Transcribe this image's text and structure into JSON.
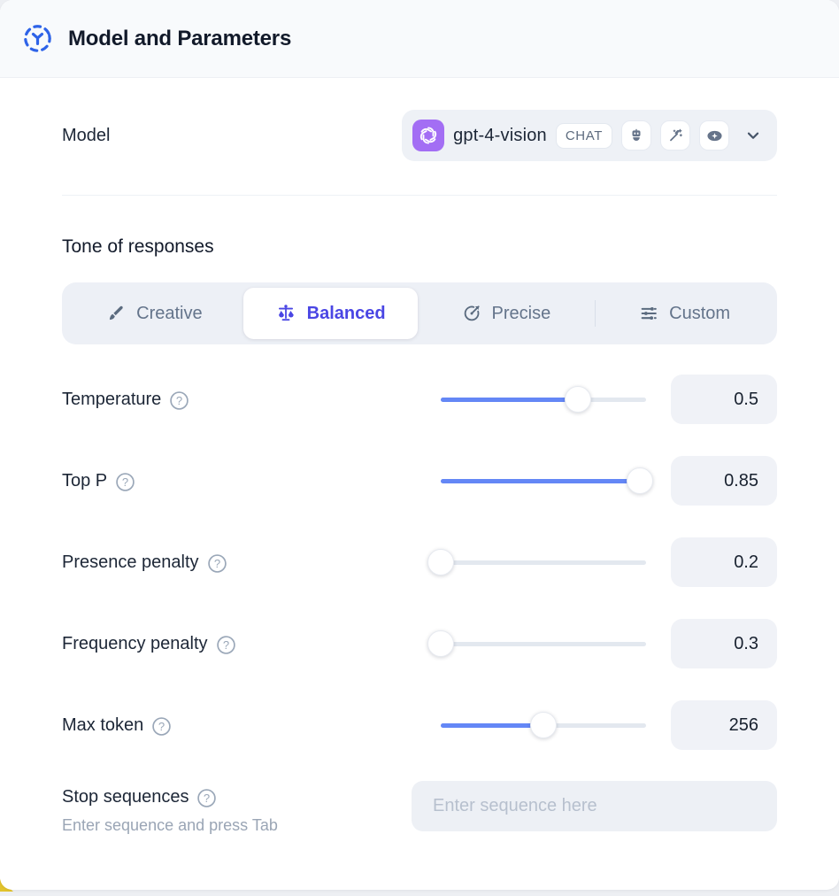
{
  "header": {
    "title": "Model and Parameters"
  },
  "model_row": {
    "label": "Model",
    "selected_model": "gpt-4-vision",
    "badge": "CHAT",
    "capability_icons": [
      "robot-icon",
      "magic-wand-icon",
      "vision-eye-icon"
    ]
  },
  "tone": {
    "heading": "Tone of responses",
    "options": [
      {
        "label": "Creative",
        "icon": "brush-icon",
        "selected": false
      },
      {
        "label": "Balanced",
        "icon": "balance-scale-icon",
        "selected": true
      },
      {
        "label": "Precise",
        "icon": "target-icon",
        "selected": false
      },
      {
        "label": "Custom",
        "icon": "sliders-icon",
        "selected": false
      }
    ]
  },
  "parameters": [
    {
      "label": "Temperature",
      "value": "0.5",
      "fill_pct": 67
    },
    {
      "label": "Top P",
      "value": "0.85",
      "fill_pct": 97
    },
    {
      "label": "Presence penalty",
      "value": "0.2",
      "fill_pct": 0
    },
    {
      "label": "Frequency penalty",
      "value": "0.3",
      "fill_pct": 0
    },
    {
      "label": "Max token",
      "value": "256",
      "fill_pct": 50
    }
  ],
  "stop_sequences": {
    "label": "Stop sequences",
    "hint": "Enter sequence and press Tab",
    "placeholder": "Enter sequence here"
  },
  "colors": {
    "accent_blue": "#6487f6",
    "selected_tone": "#4a46e4",
    "openai_badge": "#a36ef4",
    "header_icon_blue": "#2e63e8",
    "corner_accent_yellow": "#e2c32d"
  }
}
